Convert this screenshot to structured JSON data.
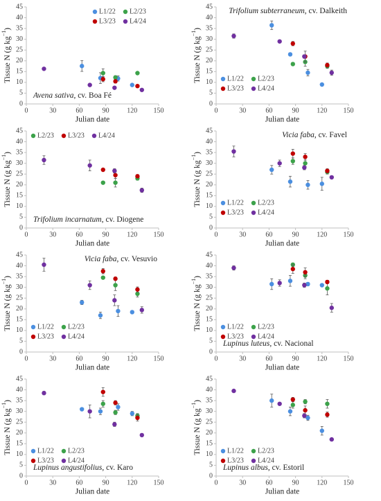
{
  "chart_data": [
    {
      "type": "scatter",
      "title_italic": "Avena sativa",
      "title_rest": ", cv. Boa Fé",
      "title_position": "lower left",
      "xlabel": "Julian date",
      "ylabel": [
        "Tissue N (g kg",
        "−1",
        ")"
      ],
      "xlim": [
        0,
        150
      ],
      "xticks": [
        0,
        30,
        60,
        90,
        120,
        150
      ],
      "ylim": [
        0,
        45
      ],
      "yticks": [
        0,
        5,
        10,
        15,
        20,
        25,
        30,
        35,
        40,
        45
      ],
      "legend": "upper right",
      "series": [
        {
          "name": "L1/22",
          "color": "#4b8fe0",
          "x": [
            63,
            84,
            104,
            120
          ],
          "values": [
            17.6,
            12,
            11.8,
            8.8
          ],
          "errors": [
            2.5,
            2.5,
            1.2,
            0.6
          ]
        },
        {
          "name": "L2/23",
          "color": "#3ca24a",
          "x": [
            87,
            101,
            126
          ],
          "values": [
            14.3,
            12.3,
            14.3
          ],
          "errors": [
            2,
            0.8,
            0.6
          ]
        },
        {
          "name": "L3/23",
          "color": "#c00000",
          "x": [
            87,
            101,
            126
          ],
          "values": [
            11.5,
            10.5,
            8.3
          ],
          "errors": [
            1.2,
            0.8,
            0.6
          ]
        },
        {
          "name": "L4/24",
          "color": "#7030a0",
          "x": [
            20,
            72,
            100,
            131
          ],
          "values": [
            16.3,
            8.8,
            7.5,
            6.5
          ],
          "errors": [
            0.6,
            0.6,
            0.6,
            0.6
          ]
        }
      ]
    },
    {
      "type": "scatter",
      "title_italic": "Trifolium subterraneum",
      "title_rest": ", cv. Dalkeith",
      "title_position": "upper right",
      "xlabel": "Julian date",
      "ylabel": [
        "Tissue N (g kg",
        "−1",
        ")"
      ],
      "xlim": [
        0,
        150
      ],
      "xticks": [
        0,
        30,
        60,
        90,
        120,
        150
      ],
      "ylim": [
        0,
        45
      ],
      "yticks": [
        0,
        5,
        10,
        15,
        20,
        25,
        30,
        35,
        40,
        45
      ],
      "legend": "lower left",
      "series": [
        {
          "name": "L1/22",
          "color": "#4b8fe0",
          "x": [
            63,
            84,
            104,
            120
          ],
          "values": [
            36.5,
            23,
            14.5,
            9
          ],
          "errors": [
            2,
            0.6,
            1.5,
            0.6
          ]
        },
        {
          "name": "L2/23",
          "color": "#3ca24a",
          "x": [
            87,
            101,
            126
          ],
          "values": [
            18.5,
            19.5,
            17.5
          ],
          "errors": [
            0.6,
            2,
            1
          ]
        },
        {
          "name": "L3/23",
          "color": "#c00000",
          "x": [
            87,
            101,
            126
          ],
          "values": [
            28,
            22,
            18
          ],
          "errors": [
            1,
            2.5,
            1
          ]
        },
        {
          "name": "L4/24",
          "color": "#7030a0",
          "x": [
            20,
            72,
            100,
            131
          ],
          "values": [
            31.5,
            29,
            22,
            14.5
          ],
          "errors": [
            1,
            0.6,
            0.8,
            1.2
          ]
        }
      ]
    },
    {
      "type": "scatter",
      "title_italic": "Trifolium incarnatum",
      "title_rest": ", cv. Diogene",
      "title_position": "lower left",
      "xlabel": "Julian date",
      "ylabel": [
        "Tissue N (g kg",
        "−1",
        ")"
      ],
      "xlim": [
        0,
        150
      ],
      "xticks": [
        0,
        30,
        60,
        90,
        120,
        150
      ],
      "ylim": [
        0,
        45
      ],
      "yticks": [
        0,
        5,
        10,
        15,
        20,
        25,
        30,
        35,
        40,
        45
      ],
      "legend": "upper left",
      "series": [
        {
          "name": "L2/23",
          "color": "#3ca24a",
          "x": [
            87,
            101,
            126
          ],
          "values": [
            21,
            21,
            23
          ],
          "errors": [
            0.6,
            2,
            0.8
          ]
        },
        {
          "name": "L3/23",
          "color": "#c00000",
          "x": [
            87,
            101,
            126
          ],
          "values": [
            27,
            24.5,
            24
          ],
          "errors": [
            0.6,
            1.5,
            0.8
          ]
        },
        {
          "name": "L4/24",
          "color": "#7030a0",
          "x": [
            20,
            72,
            100,
            131
          ],
          "values": [
            31.5,
            29,
            26.5,
            17.5
          ],
          "errors": [
            2,
            2.5,
            1,
            1
          ]
        }
      ]
    },
    {
      "type": "scatter",
      "title_italic": "Vicia faba",
      "title_rest": ", cv. Favel",
      "title_position": "upper right",
      "xlabel": "Julian date",
      "ylabel": [
        "Tissue N (g kg",
        "−1",
        ")"
      ],
      "xlim": [
        0,
        150
      ],
      "xticks": [
        0,
        30,
        60,
        90,
        120,
        150
      ],
      "ylim": [
        0,
        45
      ],
      "yticks": [
        0,
        5,
        10,
        15,
        20,
        25,
        30,
        35,
        40,
        45
      ],
      "legend": "lower left",
      "series": [
        {
          "name": "L1/22",
          "color": "#4b8fe0",
          "x": [
            63,
            84,
            104,
            120
          ],
          "values": [
            27,
            21.5,
            20,
            20.5
          ],
          "errors": [
            2,
            2.5,
            2,
            3
          ]
        },
        {
          "name": "L2/23",
          "color": "#3ca24a",
          "x": [
            87,
            101,
            126
          ],
          "values": [
            31,
            30,
            26
          ],
          "errors": [
            1.5,
            1.5,
            1
          ]
        },
        {
          "name": "L3/23",
          "color": "#c00000",
          "x": [
            87,
            101,
            126
          ],
          "values": [
            34.5,
            33,
            26.5
          ],
          "errors": [
            2,
            1.5,
            1
          ]
        },
        {
          "name": "L4/24",
          "color": "#7030a0",
          "x": [
            20,
            72,
            100,
            131
          ],
          "values": [
            35.5,
            30,
            28,
            23.5
          ],
          "errors": [
            2.5,
            1.5,
            1,
            0.6
          ]
        }
      ]
    },
    {
      "type": "scatter",
      "title_italic": "Vicia faba",
      "title_rest": ", cv. Vesuvio",
      "title_position": "upper right",
      "xlabel": "Julian date",
      "ylabel": [
        "Tissue N (g kg",
        "−1",
        ")"
      ],
      "xlim": [
        0,
        150
      ],
      "xticks": [
        0,
        30,
        60,
        90,
        120,
        150
      ],
      "ylim": [
        0,
        45
      ],
      "yticks": [
        0,
        5,
        10,
        15,
        20,
        25,
        30,
        35,
        40,
        45
      ],
      "legend": "lower left",
      "series": [
        {
          "name": "L1/22",
          "color": "#4b8fe0",
          "x": [
            63,
            84,
            104,
            120
          ],
          "values": [
            23,
            17,
            19,
            18.5
          ],
          "errors": [
            1,
            1.5,
            2.5,
            0.6
          ]
        },
        {
          "name": "L2/23",
          "color": "#3ca24a",
          "x": [
            87,
            101,
            126
          ],
          "values": [
            34.5,
            31,
            27
          ],
          "errors": [
            0.6,
            2.5,
            1.5
          ]
        },
        {
          "name": "L3/23",
          "color": "#c00000",
          "x": [
            87,
            101,
            126
          ],
          "values": [
            37.5,
            34,
            29
          ],
          "errors": [
            1.2,
            0.8,
            1.2
          ]
        },
        {
          "name": "L4/24",
          "color": "#7030a0",
          "x": [
            20,
            72,
            100,
            131
          ],
          "values": [
            40.5,
            31,
            24,
            19.5
          ],
          "errors": [
            3,
            2,
            2.5,
            1.5
          ]
        }
      ]
    },
    {
      "type": "scatter",
      "title_italic": "Lupinus luteus",
      "title_rest": ", cv. Nacional",
      "title_position": "lower left",
      "xlabel": "Julian date",
      "ylabel": [
        "Tissue N (g kg",
        "−1",
        ")"
      ],
      "xlim": [
        0,
        150
      ],
      "xticks": [
        0,
        30,
        60,
        90,
        120,
        150
      ],
      "ylim": [
        0,
        45
      ],
      "yticks": [
        0,
        5,
        10,
        15,
        20,
        25,
        30,
        35,
        40,
        45
      ],
      "legend": "lower left",
      "series": [
        {
          "name": "L1/22",
          "color": "#4b8fe0",
          "x": [
            63,
            84,
            104,
            120
          ],
          "values": [
            31.5,
            33,
            31.5,
            31
          ],
          "errors": [
            2.5,
            2.5,
            0.8,
            0.6
          ]
        },
        {
          "name": "L2/23",
          "color": "#3ca24a",
          "x": [
            87,
            101,
            126
          ],
          "values": [
            40.5,
            35.5,
            29.5
          ],
          "errors": [
            0.8,
            1.5,
            3
          ]
        },
        {
          "name": "L3/23",
          "color": "#c00000",
          "x": [
            87,
            101,
            126
          ],
          "values": [
            38.5,
            37,
            32.5
          ],
          "errors": [
            2,
            2,
            0.8
          ]
        },
        {
          "name": "L4/24",
          "color": "#7030a0",
          "x": [
            20,
            72,
            100,
            131
          ],
          "values": [
            39,
            32,
            31,
            20.5
          ],
          "errors": [
            1,
            1.5,
            1,
            2
          ]
        }
      ]
    },
    {
      "type": "scatter",
      "title_italic": "Lupinus angustifolius",
      "title_rest": ", cv. Karo",
      "title_position": "lower left",
      "xlabel": "Julian date",
      "ylabel": [
        "Tissue N (g kg",
        "−1",
        ")"
      ],
      "xlim": [
        0,
        150
      ],
      "xticks": [
        0,
        30,
        60,
        90,
        120,
        150
      ],
      "ylim": [
        0,
        45
      ],
      "yticks": [
        0,
        5,
        10,
        15,
        20,
        25,
        30,
        35,
        40,
        45
      ],
      "legend": "lower left",
      "series": [
        {
          "name": "L1/22",
          "color": "#4b8fe0",
          "x": [
            63,
            84,
            104,
            120
          ],
          "values": [
            31,
            30,
            32,
            29
          ],
          "errors": [
            0.6,
            1.5,
            1.5,
            1
          ]
        },
        {
          "name": "L2/23",
          "color": "#3ca24a",
          "x": [
            87,
            101,
            126
          ],
          "values": [
            33.5,
            29.5,
            28
          ],
          "errors": [
            1.5,
            1,
            1
          ]
        },
        {
          "name": "L3/23",
          "color": "#c00000",
          "x": [
            87,
            101,
            126
          ],
          "values": [
            39,
            34,
            27
          ],
          "errors": [
            2,
            1,
            1.5
          ]
        },
        {
          "name": "L4/24",
          "color": "#7030a0",
          "x": [
            20,
            72,
            100,
            131
          ],
          "values": [
            38.5,
            30,
            24,
            19
          ],
          "errors": [
            0.8,
            3,
            1,
            0.6
          ]
        }
      ]
    },
    {
      "type": "scatter",
      "title_italic": "Lupinus albus",
      "title_rest": ", cv. Estoril",
      "title_position": "lower left",
      "xlabel": "Julian date",
      "ylabel": [
        "Tissue N (g kg",
        "−1",
        ")"
      ],
      "xlim": [
        0,
        150
      ],
      "xticks": [
        0,
        30,
        60,
        90,
        120,
        150
      ],
      "ylim": [
        0,
        45
      ],
      "yticks": [
        0,
        5,
        10,
        15,
        20,
        25,
        30,
        35,
        40,
        45
      ],
      "legend": "lower left",
      "series": [
        {
          "name": "L1/22",
          "color": "#4b8fe0",
          "x": [
            63,
            84,
            104,
            120
          ],
          "values": [
            35,
            30,
            27,
            21
          ],
          "errors": [
            3,
            2,
            1.2,
            2
          ]
        },
        {
          "name": "L2/23",
          "color": "#3ca24a",
          "x": [
            87,
            101,
            126
          ],
          "values": [
            33,
            34.5,
            33.5
          ],
          "errors": [
            1.5,
            1,
            2
          ]
        },
        {
          "name": "L3/23",
          "color": "#c00000",
          "x": [
            87,
            101,
            126
          ],
          "values": [
            35.5,
            30.5,
            28.5
          ],
          "errors": [
            1,
            2,
            1.2
          ]
        },
        {
          "name": "L4/24",
          "color": "#7030a0",
          "x": [
            20,
            72,
            100,
            131
          ],
          "values": [
            39.5,
            33.5,
            28,
            17
          ],
          "errors": [
            0.6,
            0.6,
            1,
            0.6
          ]
        }
      ]
    }
  ]
}
